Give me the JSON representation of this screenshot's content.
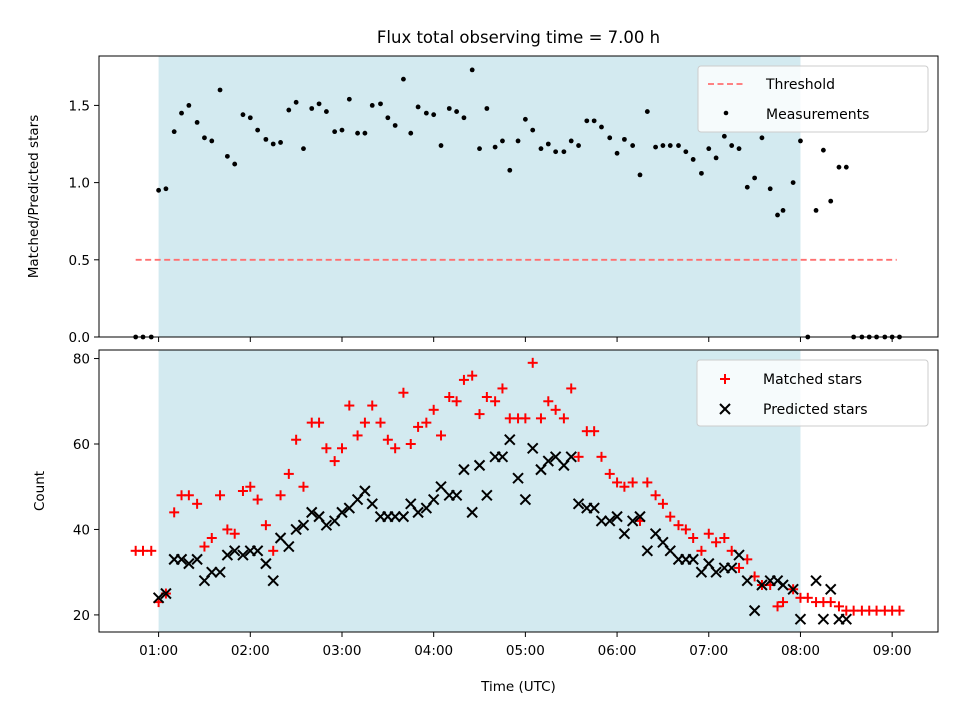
{
  "chart_data": [
    {
      "type": "scatter",
      "title": "Flux total observing time = 7.00 h",
      "ylabel": "Matched/Predicted stars",
      "xlabel": "",
      "x_unit": "hours UTC",
      "xlim": [
        0.35,
        9.5
      ],
      "ylim": [
        0,
        1.82
      ],
      "shaded_span": [
        1.0,
        8.0
      ],
      "shade_color": "#d3eaf0",
      "threshold": {
        "name": "Threshold",
        "value": 0.5,
        "x_range": [
          0.75,
          9.05
        ],
        "color": "#ff7070"
      },
      "x_ticks": [
        1,
        2,
        3,
        4,
        5,
        6,
        7,
        8,
        9
      ],
      "x_tick_labels": [
        "",
        "",
        "",
        "",
        "",
        "",
        "",
        "",
        ""
      ],
      "y_ticks": [
        0.0,
        0.5,
        1.0,
        1.5
      ],
      "y_tick_labels": [
        "0.0",
        "0.5",
        "1.0",
        "1.5"
      ],
      "legend": {
        "position": "top-right",
        "entries": [
          "Threshold",
          "Measurements"
        ]
      },
      "series": [
        {
          "name": "Measurements",
          "color": "#000000",
          "marker": "dot",
          "x": [
            0.75,
            0.83,
            0.92,
            1.0,
            1.08,
            1.17,
            1.25,
            1.33,
            1.42,
            1.5,
            1.58,
            1.67,
            1.75,
            1.83,
            1.92,
            2.0,
            2.08,
            2.17,
            2.25,
            2.33,
            2.42,
            2.5,
            2.58,
            2.67,
            2.75,
            2.83,
            2.92,
            3.0,
            3.08,
            3.17,
            3.25,
            3.33,
            3.42,
            3.5,
            3.58,
            3.67,
            3.75,
            3.83,
            3.92,
            4.0,
            4.08,
            4.17,
            4.25,
            4.33,
            4.42,
            4.5,
            4.58,
            4.67,
            4.75,
            4.83,
            4.92,
            5.0,
            5.08,
            5.17,
            5.25,
            5.33,
            5.42,
            5.5,
            5.58,
            5.67,
            5.75,
            5.83,
            5.92,
            6.0,
            6.08,
            6.17,
            6.25,
            6.33,
            6.42,
            6.5,
            6.58,
            6.67,
            6.75,
            6.83,
            6.92,
            7.0,
            7.08,
            7.17,
            7.25,
            7.33,
            7.42,
            7.5,
            7.58,
            7.67,
            7.75,
            7.81,
            7.92,
            8.0,
            8.08,
            8.17,
            8.25,
            8.33,
            8.42,
            8.5,
            8.58,
            8.67,
            8.75,
            8.83,
            8.92,
            9.0,
            9.08
          ],
          "y": [
            0.0,
            0.0,
            0.0,
            0.95,
            0.96,
            1.33,
            1.45,
            1.5,
            1.39,
            1.29,
            1.27,
            1.6,
            1.17,
            1.12,
            1.44,
            1.42,
            1.34,
            1.28,
            1.25,
            1.26,
            1.47,
            1.52,
            1.22,
            1.48,
            1.51,
            1.46,
            1.33,
            1.34,
            1.54,
            1.32,
            1.32,
            1.5,
            1.51,
            1.42,
            1.37,
            1.67,
            1.32,
            1.49,
            1.45,
            1.44,
            1.24,
            1.48,
            1.46,
            1.42,
            1.73,
            1.22,
            1.48,
            1.23,
            1.27,
            1.08,
            1.27,
            1.41,
            1.34,
            1.22,
            1.25,
            1.2,
            1.2,
            1.27,
            1.24,
            1.4,
            1.4,
            1.36,
            1.29,
            1.19,
            1.28,
            1.24,
            1.05,
            1.46,
            1.23,
            1.24,
            1.24,
            1.24,
            1.2,
            1.15,
            1.06,
            1.22,
            1.16,
            1.3,
            1.24,
            1.22,
            0.97,
            1.03,
            1.29,
            0.96,
            0.79,
            0.82,
            1.0,
            1.27,
            0.0,
            0.82,
            1.21,
            0.88,
            1.1,
            1.1,
            0.0,
            0.0,
            0.0,
            0.0,
            0.0,
            0.0,
            0.0
          ]
        }
      ]
    },
    {
      "type": "scatter",
      "title": "",
      "xlabel": "Time (UTC)",
      "ylabel": "Count",
      "x_unit": "hours UTC",
      "xlim": [
        0.35,
        9.5
      ],
      "ylim": [
        16,
        82
      ],
      "shaded_span": [
        1.0,
        8.0
      ],
      "shade_color": "#d3eaf0",
      "x_ticks": [
        1,
        2,
        3,
        4,
        5,
        6,
        7,
        8,
        9
      ],
      "x_tick_labels": [
        "01:00",
        "02:00",
        "03:00",
        "04:00",
        "05:00",
        "06:00",
        "07:00",
        "08:00",
        "09:00"
      ],
      "y_ticks": [
        20,
        40,
        60,
        80
      ],
      "y_tick_labels": [
        "20",
        "40",
        "60",
        "80"
      ],
      "legend": {
        "position": "top-right",
        "entries": [
          "Matched stars",
          "Predicted stars"
        ]
      },
      "series": [
        {
          "name": "Matched stars",
          "color": "#ff0000",
          "marker": "plus",
          "x": [
            0.75,
            0.83,
            0.92,
            1.0,
            1.08,
            1.17,
            1.25,
            1.33,
            1.42,
            1.5,
            1.58,
            1.67,
            1.75,
            1.83,
            1.92,
            2.0,
            2.08,
            2.17,
            2.25,
            2.33,
            2.42,
            2.5,
            2.58,
            2.67,
            2.75,
            2.83,
            2.92,
            3.0,
            3.08,
            3.17,
            3.25,
            3.33,
            3.42,
            3.5,
            3.58,
            3.67,
            3.75,
            3.83,
            3.92,
            4.0,
            4.08,
            4.17,
            4.25,
            4.33,
            4.42,
            4.5,
            4.58,
            4.67,
            4.75,
            4.83,
            4.92,
            5.0,
            5.08,
            5.17,
            5.25,
            5.33,
            5.42,
            5.5,
            5.58,
            5.67,
            5.75,
            5.83,
            5.92,
            6.0,
            6.08,
            6.17,
            6.25,
            6.33,
            6.42,
            6.5,
            6.58,
            6.67,
            6.75,
            6.83,
            6.92,
            7.0,
            7.08,
            7.17,
            7.25,
            7.33,
            7.42,
            7.5,
            7.58,
            7.67,
            7.75,
            7.81,
            7.92,
            8.0,
            8.08,
            8.17,
            8.25,
            8.33,
            8.42,
            8.5,
            8.58,
            8.67,
            8.75,
            8.83,
            8.92,
            9.0,
            9.08
          ],
          "y": [
            35,
            35,
            35,
            23,
            25,
            44,
            48,
            48,
            46,
            36,
            38,
            48,
            40,
            39,
            49,
            50,
            47,
            41,
            35,
            48,
            53,
            61,
            50,
            65,
            65,
            59,
            56,
            59,
            69,
            62,
            65,
            69,
            65,
            61,
            59,
            72,
            60,
            64,
            65,
            68,
            62,
            71,
            70,
            75,
            76,
            67,
            71,
            70,
            73,
            66,
            66,
            66,
            79,
            66,
            70,
            68,
            66,
            73,
            57,
            63,
            63,
            57,
            53,
            51,
            50,
            51,
            42,
            51,
            48,
            46,
            43,
            41,
            40,
            38,
            35,
            39,
            37,
            38,
            35,
            31,
            33,
            29,
            27,
            27,
            22,
            23,
            26,
            24,
            24,
            23,
            23,
            23,
            22,
            21,
            21,
            21,
            21,
            21,
            21,
            21,
            21
          ]
        },
        {
          "name": "Predicted stars",
          "color": "#000000",
          "marker": "cross",
          "x": [
            1.0,
            1.08,
            1.17,
            1.25,
            1.33,
            1.42,
            1.5,
            1.58,
            1.67,
            1.75,
            1.83,
            1.92,
            2.0,
            2.08,
            2.17,
            2.25,
            2.33,
            2.42,
            2.5,
            2.58,
            2.67,
            2.75,
            2.83,
            2.92,
            3.0,
            3.08,
            3.17,
            3.25,
            3.33,
            3.42,
            3.5,
            3.58,
            3.67,
            3.75,
            3.83,
            3.92,
            4.0,
            4.08,
            4.17,
            4.25,
            4.33,
            4.42,
            4.5,
            4.58,
            4.67,
            4.75,
            4.83,
            4.92,
            5.0,
            5.08,
            5.17,
            5.25,
            5.33,
            5.42,
            5.5,
            5.58,
            5.67,
            5.75,
            5.83,
            5.92,
            6.0,
            6.08,
            6.17,
            6.25,
            6.33,
            6.42,
            6.5,
            6.58,
            6.67,
            6.75,
            6.83,
            6.92,
            7.0,
            7.08,
            7.17,
            7.25,
            7.33,
            7.42,
            7.5,
            7.58,
            7.67,
            7.75,
            7.81,
            7.92,
            8.0,
            8.17,
            8.25,
            8.33,
            8.42,
            8.5
          ],
          "y": [
            24,
            25,
            33,
            33,
            32,
            33,
            28,
            30,
            30,
            34,
            35,
            34,
            35,
            35,
            32,
            28,
            38,
            36,
            40,
            41,
            44,
            43,
            41,
            42,
            44,
            45,
            47,
            49,
            46,
            43,
            43,
            43,
            43,
            46,
            44,
            45,
            47,
            50,
            48,
            48,
            54,
            44,
            55,
            48,
            57,
            57,
            61,
            52,
            47,
            59,
            54,
            56,
            57,
            55,
            57,
            46,
            45,
            45,
            42,
            42,
            43,
            39,
            42,
            43,
            35,
            39,
            37,
            35,
            33,
            33,
            33,
            30,
            32,
            30,
            31,
            31,
            34,
            28,
            21,
            27,
            28,
            28,
            27,
            26,
            19,
            28,
            19,
            26,
            19,
            19
          ]
        }
      ]
    }
  ]
}
